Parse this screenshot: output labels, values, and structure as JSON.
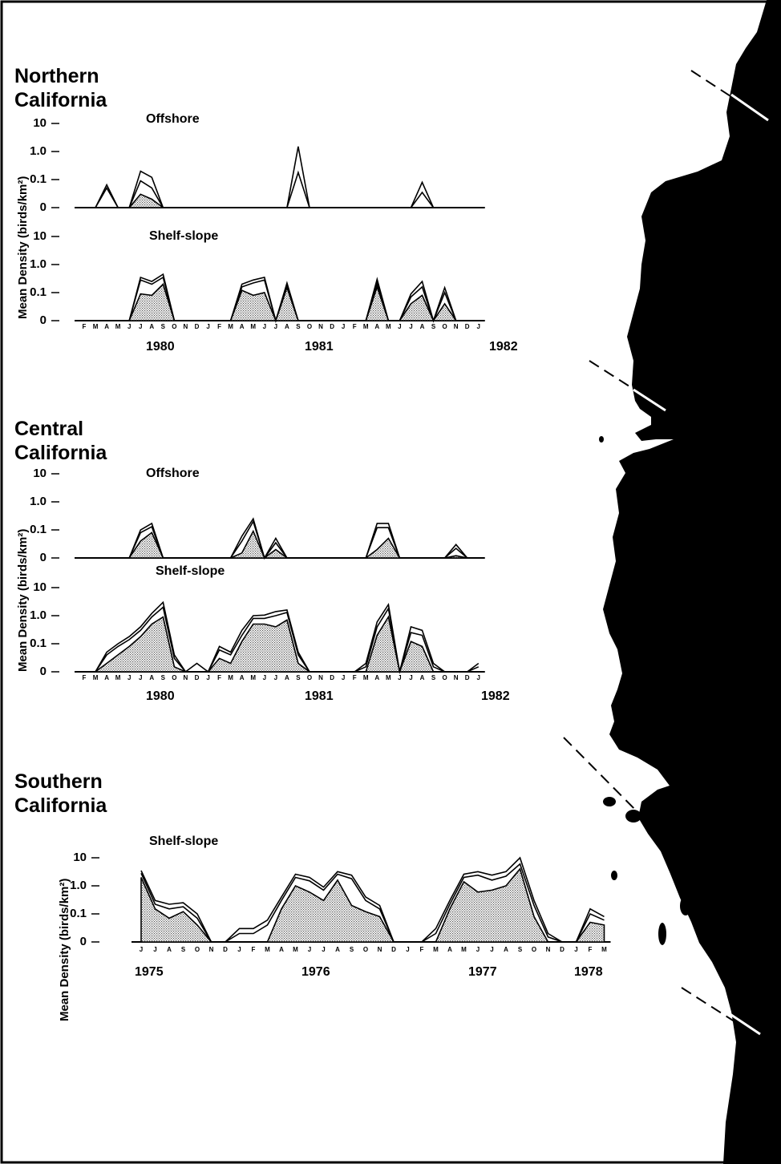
{
  "regions": {
    "northern": [
      "Northern",
      "California"
    ],
    "central": [
      "Central",
      "California"
    ],
    "southern": [
      "Southern",
      "California"
    ]
  },
  "ylabel": "Mean Density (birds/km²)",
  "y_ticks": [
    "0",
    "0.1",
    "1.0",
    "10"
  ],
  "colors": {
    "line": "#000000",
    "fill_stipple": "#c8c8c8",
    "land": "#000000"
  },
  "chart_data": [
    {
      "region": "Northern California",
      "title": "Offshore",
      "type": "area",
      "yscale": "log",
      "ylim": [
        0,
        10
      ],
      "x": [
        "F",
        "M",
        "A",
        "M",
        "J",
        "J",
        "A",
        "S",
        "O",
        "N",
        "D",
        "J",
        "F",
        "M",
        "A",
        "M",
        "J",
        "J",
        "A",
        "S",
        "O",
        "N",
        "D",
        "J",
        "F",
        "M",
        "A",
        "M",
        "J",
        "J",
        "A",
        "S",
        "O",
        "N",
        "D",
        "J"
      ],
      "x_start": "1980-02",
      "years": [
        "1980",
        "1981",
        "1982"
      ],
      "series": [
        {
          "values": [
            0,
            0,
            0.065,
            0,
            0,
            0.2,
            0.12,
            0,
            0,
            0,
            0,
            0,
            0,
            0,
            0,
            0,
            0,
            0,
            0,
            1.5,
            0,
            0,
            0,
            0,
            0,
            0,
            0,
            0,
            0,
            0,
            0.08,
            0,
            0,
            0,
            0,
            0
          ]
        },
        {
          "values": [
            0,
            0,
            0.05,
            0,
            0,
            0.09,
            0.05,
            0,
            0,
            0,
            0,
            0,
            0,
            0,
            0,
            0,
            0,
            0,
            0,
            0.18,
            0,
            0,
            0,
            0,
            0,
            0,
            0,
            0,
            0,
            0,
            0.035,
            0,
            0,
            0,
            0,
            0
          ]
        },
        {
          "values": [
            0,
            0,
            0,
            0,
            0,
            0.03,
            0.02,
            0,
            0,
            0,
            0,
            0,
            0,
            0,
            0,
            0,
            0,
            0,
            0,
            0,
            0,
            0,
            0,
            0,
            0,
            0,
            0,
            0,
            0,
            0,
            0,
            0,
            0,
            0,
            0,
            0
          ]
        }
      ]
    },
    {
      "region": "Northern California",
      "title": "Shelf-slope",
      "type": "area",
      "yscale": "log",
      "ylim": [
        0,
        10
      ],
      "x": [
        "F",
        "M",
        "A",
        "M",
        "J",
        "J",
        "A",
        "S",
        "O",
        "N",
        "D",
        "J",
        "F",
        "M",
        "A",
        "M",
        "J",
        "J",
        "A",
        "S",
        "O",
        "N",
        "D",
        "J",
        "F",
        "M",
        "A",
        "M",
        "J",
        "J",
        "A",
        "S",
        "O",
        "N",
        "D",
        "J"
      ],
      "x_start": "1980-02",
      "years": [
        "1980",
        "1981",
        "1982"
      ],
      "series": [
        {
          "values": [
            0,
            0,
            0,
            0,
            0,
            0.35,
            0.25,
            0.45,
            0,
            0,
            0,
            0,
            0,
            0,
            0.2,
            0.28,
            0.35,
            0,
            0.22,
            0,
            0,
            0,
            0,
            0,
            0,
            0,
            0.3,
            0,
            0,
            0.09,
            0.25,
            0,
            0.15,
            0,
            0,
            0
          ]
        },
        {
          "values": [
            0,
            0,
            0,
            0,
            0,
            0.28,
            0.2,
            0.35,
            0,
            0,
            0,
            0,
            0,
            0,
            0.16,
            0.22,
            0.28,
            0,
            0.18,
            0,
            0,
            0,
            0,
            0,
            0,
            0,
            0.22,
            0,
            0,
            0.07,
            0.16,
            0,
            0.1,
            0,
            0,
            0
          ]
        },
        {
          "values": [
            0,
            0,
            0,
            0,
            0,
            0.09,
            0.08,
            0.2,
            0,
            0,
            0,
            0,
            0,
            0,
            0.12,
            0.08,
            0.1,
            0,
            0.15,
            0,
            0,
            0,
            0,
            0,
            0,
            0,
            0.16,
            0,
            0,
            0.04,
            0.08,
            0,
            0.04,
            0,
            0,
            0
          ]
        }
      ]
    },
    {
      "region": "Central California",
      "title": "Offshore",
      "type": "area",
      "yscale": "log",
      "ylim": [
        0,
        10
      ],
      "x": [
        "F",
        "M",
        "A",
        "M",
        "J",
        "J",
        "A",
        "S",
        "O",
        "N",
        "D",
        "J",
        "F",
        "M",
        "A",
        "M",
        "J",
        "J",
        "A",
        "S",
        "O",
        "N",
        "D",
        "J",
        "F",
        "M",
        "A",
        "M",
        "J",
        "J",
        "A",
        "S",
        "O",
        "N",
        "D",
        "J"
      ],
      "x_start": "1980-02",
      "years": [
        "1980",
        "1981",
        "1982"
      ],
      "series": [
        {
          "values": [
            0,
            0,
            0,
            0,
            0,
            0.1,
            0.17,
            0,
            0,
            0,
            0,
            0,
            0,
            0,
            0.06,
            0.25,
            0,
            0.05,
            0,
            0,
            0,
            0,
            0,
            0,
            0,
            0,
            0.17,
            0.17,
            0,
            0,
            0,
            0,
            0,
            0.03,
            0,
            0
          ]
        },
        {
          "values": [
            0,
            0,
            0,
            0,
            0,
            0.08,
            0.13,
            0,
            0,
            0,
            0,
            0,
            0,
            0,
            0.04,
            0.2,
            0,
            0.035,
            0,
            0,
            0,
            0,
            0,
            0,
            0,
            0,
            0.12,
            0.12,
            0,
            0,
            0,
            0,
            0,
            0.022,
            0,
            0
          ]
        },
        {
          "values": [
            0,
            0,
            0,
            0,
            0,
            0.04,
            0.08,
            0,
            0,
            0,
            0,
            0,
            0,
            0,
            0.015,
            0.09,
            0,
            0.02,
            0,
            0,
            0,
            0,
            0,
            0,
            0,
            0,
            0.02,
            0.05,
            0,
            0,
            0,
            0,
            0,
            0.012,
            0,
            0
          ]
        }
      ]
    },
    {
      "region": "Central California",
      "title": "Shelf-slope",
      "type": "area",
      "yscale": "log",
      "ylim": [
        0,
        10
      ],
      "x": [
        "F",
        "M",
        "A",
        "M",
        "J",
        "J",
        "A",
        "S",
        "O",
        "N",
        "D",
        "J",
        "F",
        "M",
        "A",
        "M",
        "J",
        "J",
        "A",
        "S",
        "O",
        "N",
        "D",
        "J",
        "F",
        "M",
        "A",
        "M",
        "J",
        "J",
        "A",
        "S",
        "O",
        "N",
        "D",
        "J"
      ],
      "x_start": "1980-02",
      "years": [
        "1980",
        "1981",
        "1982"
      ],
      "series": [
        {
          "values": [
            0,
            0,
            0.05,
            0.1,
            0.18,
            0.4,
            1.2,
            3.0,
            0.04,
            0,
            0.02,
            0,
            0.08,
            0.05,
            0.3,
            1.0,
            1.05,
            1.4,
            1.6,
            0.05,
            0,
            0,
            0,
            0,
            0,
            0.02,
            0.6,
            2.5,
            0,
            0.4,
            0.3,
            0.02,
            0,
            0,
            0,
            0.02
          ]
        },
        {
          "values": [
            0,
            0,
            0.04,
            0.08,
            0.14,
            0.3,
            0.9,
            2.0,
            0.03,
            0,
            0.01,
            0,
            0.06,
            0.04,
            0.2,
            0.8,
            0.8,
            1.0,
            1.3,
            0.04,
            0,
            0,
            0,
            0,
            0,
            0.015,
            0.4,
            1.8,
            0,
            0.25,
            0.2,
            0.015,
            0,
            0,
            0,
            0.015
          ]
        },
        {
          "values": [
            0,
            0,
            0.02,
            0.04,
            0.08,
            0.18,
            0.5,
            0.9,
            0.015,
            0,
            0,
            0,
            0.03,
            0.02,
            0.12,
            0.5,
            0.5,
            0.4,
            0.7,
            0.02,
            0,
            0,
            0,
            0,
            0,
            0.01,
            0.2,
            0.9,
            0,
            0.12,
            0.08,
            0.008,
            0,
            0,
            0,
            0
          ]
        }
      ]
    },
    {
      "region": "Southern California",
      "title": "Shelf-slope",
      "type": "area",
      "yscale": "log",
      "ylim": [
        0,
        10
      ],
      "x": [
        "J",
        "J",
        "A",
        "S",
        "O",
        "N",
        "D",
        "J",
        "F",
        "M",
        "A",
        "M",
        "J",
        "J",
        "A",
        "S",
        "O",
        "N",
        "D",
        "J",
        "F",
        "M",
        "A",
        "M",
        "J",
        "J",
        "A",
        "S",
        "O",
        "N",
        "D",
        "J",
        "F",
        "M"
      ],
      "x_start": "1975-06",
      "years": [
        "1975",
        "1976",
        "1977",
        "1978"
      ],
      "series": [
        {
          "values": [
            3.5,
            0.3,
            0.22,
            0.25,
            0.1,
            0,
            0,
            0.03,
            0.03,
            0.06,
            0.4,
            2.6,
            2.0,
            0.9,
            3.2,
            2.4,
            0.4,
            0.2,
            0,
            0,
            0,
            0.03,
            0.3,
            2.6,
            3.2,
            2.4,
            3.2,
            10,
            0.3,
            0.02,
            0,
            0,
            0.15,
            0.08
          ]
        },
        {
          "values": [
            2.8,
            0.22,
            0.15,
            0.18,
            0.07,
            0,
            0,
            0.02,
            0.02,
            0.04,
            0.3,
            2.0,
            1.5,
            0.7,
            2.6,
            1.8,
            0.3,
            0.15,
            0,
            0,
            0,
            0.02,
            0.22,
            2.0,
            2.4,
            1.6,
            2.2,
            6.0,
            0.2,
            0.015,
            0,
            0,
            0.1,
            0.06
          ]
        },
        {
          "values": [
            2.0,
            0.15,
            0.07,
            0.12,
            0.04,
            0,
            0,
            0,
            0,
            0.01,
            0.15,
            1.0,
            0.6,
            0.3,
            1.6,
            0.2,
            0.12,
            0.08,
            0,
            0,
            0,
            0.01,
            0.15,
            1.4,
            0.6,
            0.7,
            1.0,
            4.0,
            0.08,
            0.008,
            0,
            0,
            0.05,
            0.04
          ]
        }
      ]
    }
  ]
}
